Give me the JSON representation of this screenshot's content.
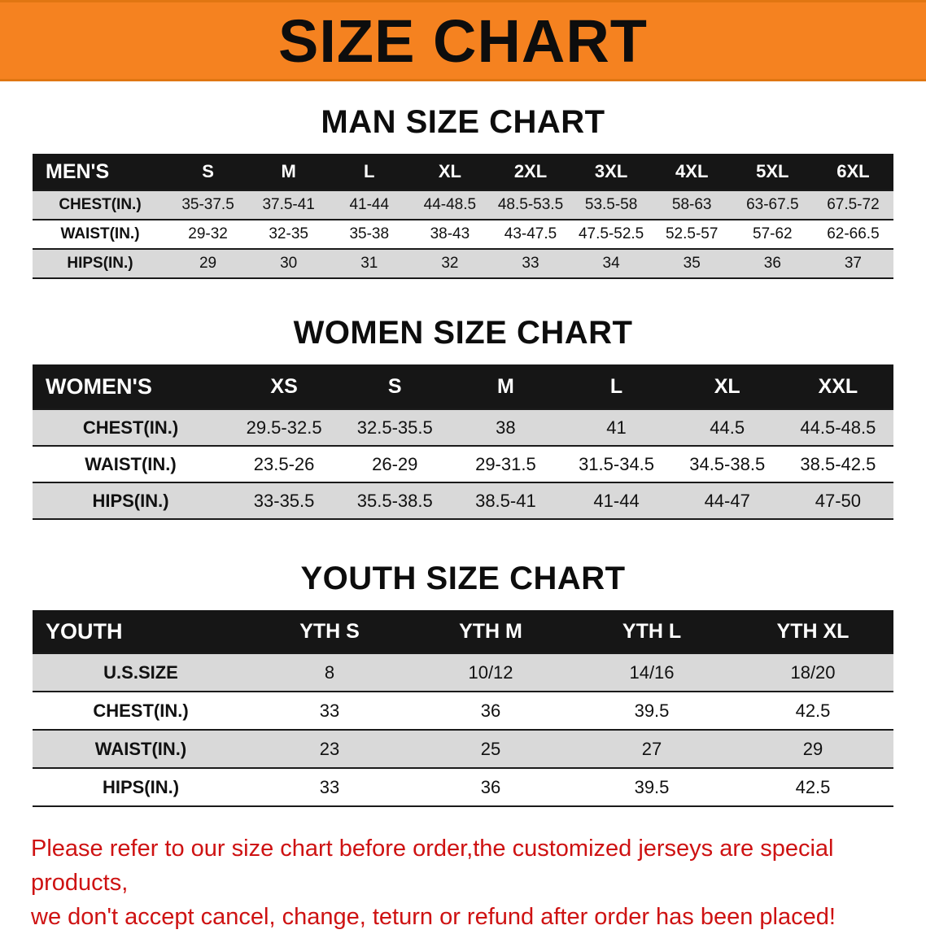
{
  "banner": {
    "title": "SIZE CHART",
    "bg_color": "#F58220"
  },
  "tables": [
    {
      "heading": "MAN SIZE CHART",
      "header": [
        "MEN'S",
        "S",
        "M",
        "L",
        "XL",
        "2XL",
        "3XL",
        "4XL",
        "5XL",
        "6XL"
      ],
      "rows": [
        {
          "label": "CHEST(IN.)",
          "values": [
            "35-37.5",
            "37.5-41",
            "41-44",
            "44-48.5",
            "48.5-53.5",
            "53.5-58",
            "58-63",
            "63-67.5",
            "67.5-72"
          ]
        },
        {
          "label": "WAIST(IN.)",
          "values": [
            "29-32",
            "32-35",
            "35-38",
            "38-43",
            "43-47.5",
            "47.5-52.5",
            "52.5-57",
            "57-62",
            "62-66.5"
          ]
        },
        {
          "label": "HIPS(IN.)",
          "values": [
            "29",
            "30",
            "31",
            "32",
            "33",
            "34",
            "35",
            "36",
            "37"
          ]
        }
      ]
    },
    {
      "heading": "WOMEN SIZE CHART",
      "header": [
        "WOMEN'S",
        "XS",
        "S",
        "M",
        "L",
        "XL",
        "XXL"
      ],
      "rows": [
        {
          "label": "CHEST(IN.)",
          "values": [
            "29.5-32.5",
            "32.5-35.5",
            "38",
            "41",
            "44.5",
            "44.5-48.5"
          ]
        },
        {
          "label": "WAIST(IN.)",
          "values": [
            "23.5-26",
            "26-29",
            "29-31.5",
            "31.5-34.5",
            "34.5-38.5",
            "38.5-42.5"
          ]
        },
        {
          "label": "HIPS(IN.)",
          "values": [
            "33-35.5",
            "35.5-38.5",
            "38.5-41",
            "41-44",
            "44-47",
            "47-50"
          ]
        }
      ]
    },
    {
      "heading": "YOUTH SIZE CHART",
      "header": [
        "YOUTH",
        "YTH S",
        "YTH M",
        "YTH L",
        "YTH XL"
      ],
      "rows": [
        {
          "label": "U.S.SIZE",
          "values": [
            "8",
            "10/12",
            "14/16",
            "18/20"
          ]
        },
        {
          "label": "CHEST(IN.)",
          "values": [
            "33",
            "36",
            "39.5",
            "42.5"
          ]
        },
        {
          "label": "WAIST(IN.)",
          "values": [
            "23",
            "25",
            "27",
            "29"
          ]
        },
        {
          "label": "HIPS(IN.)",
          "values": [
            "33",
            "36",
            "39.5",
            "42.5"
          ]
        }
      ]
    }
  ],
  "footer": {
    "color": "#CE1212",
    "lines": [
      "Please refer to our size chart before order,the customized jerseys are special products,",
      "we don't accept cancel, change, teturn or refund after order has been placed!"
    ]
  }
}
